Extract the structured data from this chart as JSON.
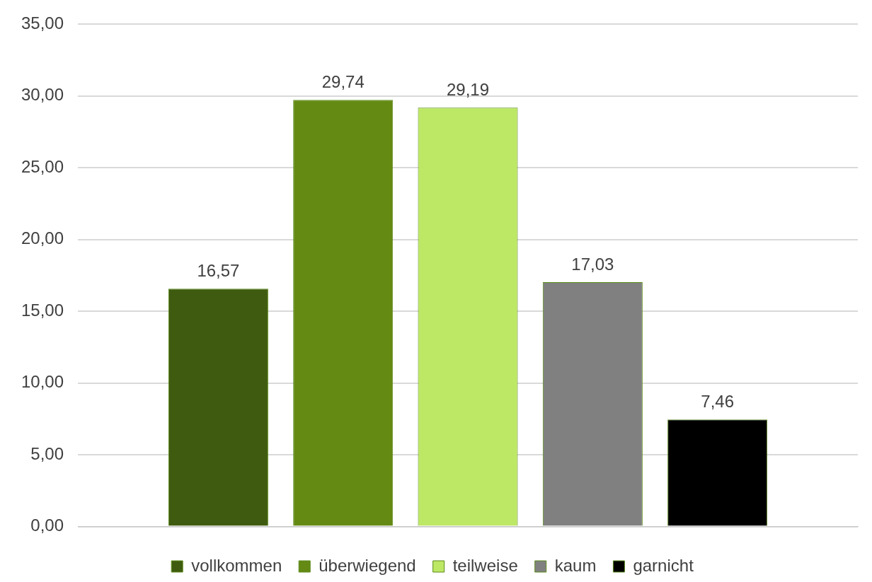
{
  "chart_data": {
    "type": "bar",
    "categories": [
      null
    ],
    "series": [
      {
        "name": "vollkommen",
        "color": "#3f5b0f",
        "values": [
          16.57
        ],
        "value_labels": [
          "16,57"
        ]
      },
      {
        "name": "überwiegend",
        "color": "#648a14",
        "values": [
          29.74
        ],
        "value_labels": [
          "29,74"
        ]
      },
      {
        "name": "teilweise",
        "color": "#bde865",
        "values": [
          29.19
        ],
        "value_labels": [
          "29,19"
        ]
      },
      {
        "name": "kaum",
        "color": "#808080",
        "values": [
          17.03
        ],
        "value_labels": [
          "17,03"
        ]
      },
      {
        "name": "garnicht",
        "color": "#000000",
        "values": [
          7.46
        ],
        "value_labels": [
          "7,46"
        ]
      }
    ],
    "ylim": [
      0,
      35
    ],
    "yticks": [
      {
        "value": 0,
        "label": "0,00"
      },
      {
        "value": 5,
        "label": "5,00"
      },
      {
        "value": 10,
        "label": "10,00"
      },
      {
        "value": 15,
        "label": "15,00"
      },
      {
        "value": 20,
        "label": "20,00"
      },
      {
        "value": 25,
        "label": "25,00"
      },
      {
        "value": 30,
        "label": "30,00"
      },
      {
        "value": 35,
        "label": "35,00"
      }
    ],
    "grid": "y",
    "legend": "bottom"
  }
}
